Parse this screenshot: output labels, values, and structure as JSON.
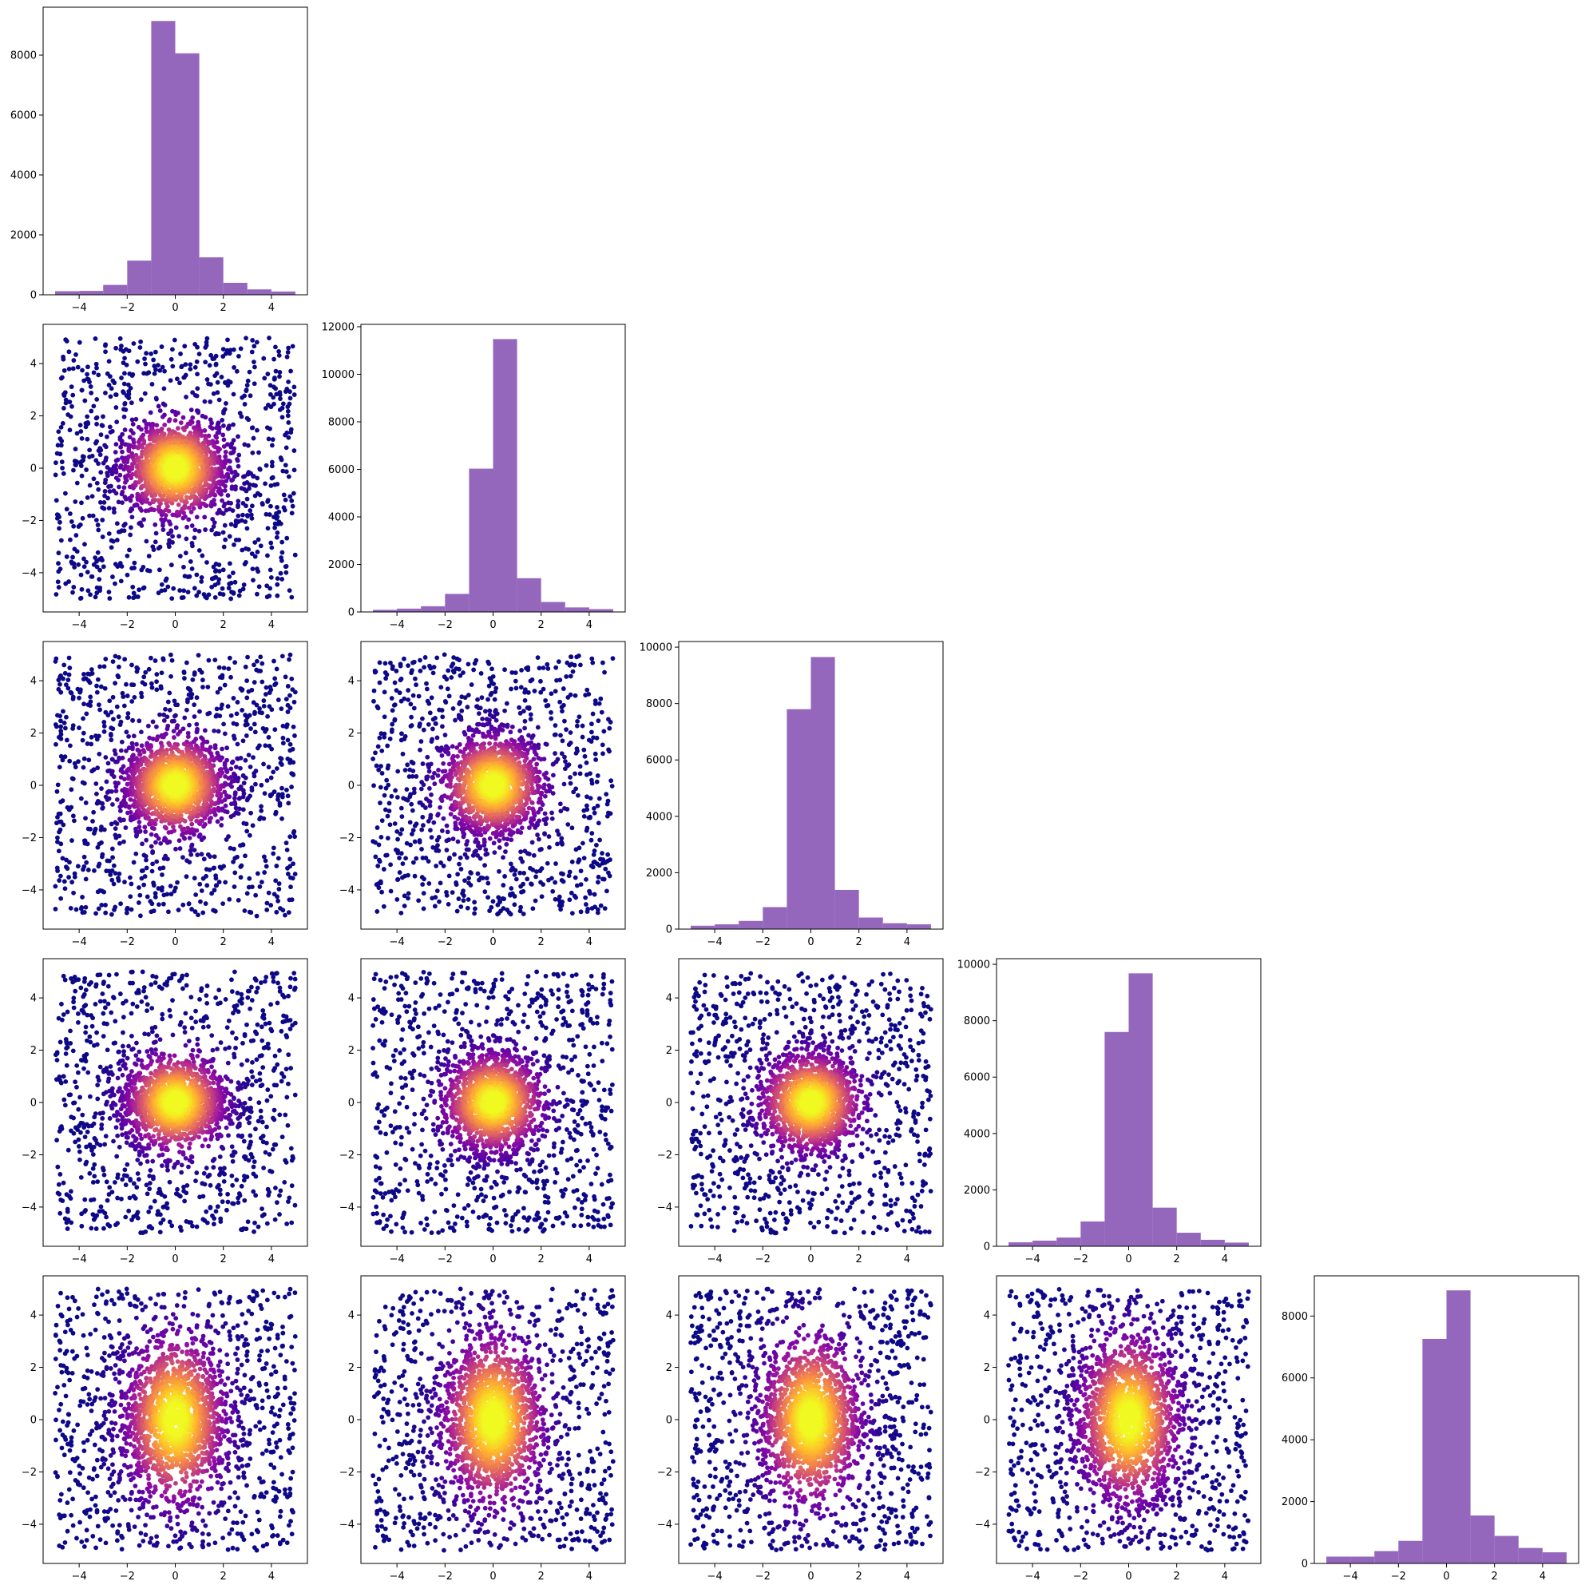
{
  "figure": {
    "type": "corner-plot",
    "variables": 5,
    "colors": {
      "hist_bar": "#9467bd",
      "scatter_colormap": "plasma",
      "axes": "#000000",
      "background": "#ffffff"
    }
  },
  "chart_data": [
    {
      "id": "hist-1",
      "type": "bar",
      "row": 0,
      "col": 0,
      "bin_edges": [
        -5,
        -4,
        -3,
        -2,
        -1,
        0,
        1,
        2,
        3,
        4,
        5
      ],
      "values": [
        120,
        130,
        330,
        1140,
        9140,
        8060,
        1250,
        400,
        180,
        110
      ],
      "xlim": [
        -5.5,
        5.5
      ],
      "ylim": [
        0,
        9600
      ],
      "x_ticks": [
        -4,
        -2,
        0,
        2,
        4
      ],
      "x_tick_labels": [
        "−4",
        "−2",
        "0",
        "2",
        "4"
      ],
      "y_ticks": [
        0,
        2000,
        4000,
        6000,
        8000
      ],
      "y_tick_labels": [
        "0",
        "2000",
        "4000",
        "6000",
        "8000"
      ]
    },
    {
      "id": "hist-2",
      "type": "bar",
      "row": 1,
      "col": 1,
      "bin_edges": [
        -5,
        -4,
        -3,
        -2,
        -1,
        0,
        1,
        2,
        3,
        4,
        5
      ],
      "values": [
        90,
        140,
        240,
        760,
        6030,
        11480,
        1420,
        420,
        190,
        120
      ],
      "xlim": [
        -5.5,
        5.5
      ],
      "ylim": [
        0,
        12100
      ],
      "x_ticks": [
        -4,
        -2,
        0,
        2,
        4
      ],
      "x_tick_labels": [
        "−4",
        "−2",
        "0",
        "2",
        "4"
      ],
      "y_ticks": [
        0,
        2000,
        4000,
        6000,
        8000,
        10000,
        12000
      ],
      "y_tick_labels": [
        "0",
        "2000",
        "4000",
        "6000",
        "8000",
        "10000",
        "12000"
      ]
    },
    {
      "id": "hist-3",
      "type": "bar",
      "row": 2,
      "col": 2,
      "bin_edges": [
        -5,
        -4,
        -3,
        -2,
        -1,
        0,
        1,
        2,
        3,
        4,
        5
      ],
      "values": [
        120,
        170,
        290,
        780,
        7800,
        9650,
        1390,
        410,
        210,
        170
      ],
      "xlim": [
        -5.5,
        5.5
      ],
      "ylim": [
        0,
        10200
      ],
      "x_ticks": [
        -4,
        -2,
        0,
        2,
        4
      ],
      "x_tick_labels": [
        "−4",
        "−2",
        "0",
        "2",
        "4"
      ],
      "y_ticks": [
        0,
        2000,
        4000,
        6000,
        8000,
        10000
      ],
      "y_tick_labels": [
        "0",
        "2000",
        "4000",
        "6000",
        "8000",
        "10000"
      ]
    },
    {
      "id": "hist-4",
      "type": "bar",
      "row": 3,
      "col": 3,
      "bin_edges": [
        -5,
        -4,
        -3,
        -2,
        -1,
        0,
        1,
        2,
        3,
        4,
        5
      ],
      "values": [
        140,
        200,
        310,
        880,
        7600,
        9680,
        1370,
        480,
        230,
        130
      ],
      "xlim": [
        -5.5,
        5.5
      ],
      "ylim": [
        0,
        10200
      ],
      "x_ticks": [
        -4,
        -2,
        0,
        2,
        4
      ],
      "x_tick_labels": [
        "−4",
        "−2",
        "0",
        "2",
        "4"
      ],
      "y_ticks": [
        0,
        2000,
        4000,
        6000,
        8000,
        10000
      ],
      "y_tick_labels": [
        "0",
        "2000",
        "4000",
        "6000",
        "8000",
        "10000"
      ]
    },
    {
      "id": "hist-5",
      "type": "bar",
      "row": 4,
      "col": 4,
      "bin_edges": [
        -5,
        -4,
        -3,
        -2,
        -1,
        0,
        1,
        2,
        3,
        4,
        5
      ],
      "values": [
        220,
        220,
        400,
        730,
        7260,
        8830,
        1550,
        890,
        500,
        360
      ],
      "xlim": [
        -5.5,
        5.5
      ],
      "ylim": [
        0,
        9300
      ],
      "x_ticks": [
        -4,
        -2,
        0,
        2,
        4
      ],
      "x_tick_labels": [
        "−4",
        "−2",
        "0",
        "2",
        "4"
      ],
      "y_ticks": [
        0,
        2000,
        4000,
        6000,
        8000
      ],
      "y_tick_labels": [
        "0",
        "2000",
        "4000",
        "6000",
        "8000"
      ]
    },
    {
      "id": "scatter-2-1",
      "type": "scatter",
      "row": 1,
      "col": 0,
      "shape": "v",
      "x_spread": 1.0,
      "y_spread": 1.0,
      "core_spread": [
        1.1,
        0.75
      ],
      "xlim": [
        -5.5,
        5.5
      ],
      "ylim": [
        -5.5,
        5.5
      ],
      "x_ticks": [
        -4,
        -2,
        0,
        2,
        4
      ],
      "x_tick_labels": [
        "−4",
        "−2",
        "0",
        "2",
        "4"
      ],
      "y_ticks": [
        -4,
        -2,
        0,
        2,
        4
      ],
      "y_tick_labels": [
        "−4",
        "−2",
        "0",
        "2",
        "4"
      ]
    },
    {
      "id": "scatter-3-1",
      "type": "scatter",
      "row": 2,
      "col": 0,
      "shape": "flat",
      "x_spread": 1.0,
      "y_spread": 1.0,
      "core_spread": [
        1.1,
        0.75
      ],
      "xlim": [
        -5.5,
        5.5
      ],
      "ylim": [
        -5.5,
        5.5
      ],
      "x_ticks": [
        -4,
        -2,
        0,
        2,
        4
      ],
      "x_tick_labels": [
        "−4",
        "−2",
        "0",
        "2",
        "4"
      ],
      "y_ticks": [
        -4,
        -2,
        0,
        2,
        4
      ],
      "y_tick_labels": [
        "−4",
        "−2",
        "0",
        "2",
        "4"
      ]
    },
    {
      "id": "scatter-3-2",
      "type": "scatter",
      "row": 2,
      "col": 1,
      "shape": "diag",
      "x_spread": 1.0,
      "y_spread": 1.0,
      "core_spread": [
        0.9,
        0.9
      ],
      "xlim": [
        -5.5,
        5.5
      ],
      "ylim": [
        -5.5,
        5.5
      ],
      "x_ticks": [
        -4,
        -2,
        0,
        2,
        4
      ],
      "x_tick_labels": [
        "−4",
        "−2",
        "0",
        "2",
        "4"
      ],
      "y_ticks": [
        -4,
        -2,
        0,
        2,
        4
      ],
      "y_tick_labels": [
        "−4",
        "−2",
        "0",
        "2",
        "4"
      ]
    },
    {
      "id": "scatter-4-1",
      "type": "scatter",
      "row": 3,
      "col": 0,
      "shape": "flat",
      "x_spread": 1.0,
      "y_spread": 1.0,
      "core_spread": [
        1.1,
        0.75
      ],
      "xlim": [
        -5.5,
        5.5
      ],
      "ylim": [
        -5.5,
        5.5
      ],
      "x_ticks": [
        -4,
        -2,
        0,
        2,
        4
      ],
      "x_tick_labels": [
        "−4",
        "−2",
        "0",
        "2",
        "4"
      ],
      "y_ticks": [
        -4,
        -2,
        0,
        2,
        4
      ],
      "y_tick_labels": [
        "−4",
        "−2",
        "0",
        "2",
        "4"
      ]
    },
    {
      "id": "scatter-4-2",
      "type": "scatter",
      "row": 3,
      "col": 1,
      "shape": "diag",
      "x_spread": 1.0,
      "y_spread": 1.0,
      "core_spread": [
        0.9,
        0.9
      ],
      "xlim": [
        -5.5,
        5.5
      ],
      "ylim": [
        -5.5,
        5.5
      ],
      "x_ticks": [
        -4,
        -2,
        0,
        2,
        4
      ],
      "x_tick_labels": [
        "−4",
        "−2",
        "0",
        "2",
        "4"
      ],
      "y_ticks": [
        -4,
        -2,
        0,
        2,
        4
      ],
      "y_tick_labels": [
        "−4",
        "−2",
        "0",
        "2",
        "4"
      ]
    },
    {
      "id": "scatter-4-3",
      "type": "scatter",
      "row": 3,
      "col": 2,
      "shape": "diag",
      "x_spread": 1.0,
      "y_spread": 1.0,
      "core_spread": [
        0.9,
        0.9
      ],
      "xlim": [
        -5.5,
        5.5
      ],
      "ylim": [
        -5.5,
        5.5
      ],
      "x_ticks": [
        -4,
        -2,
        0,
        2,
        4
      ],
      "x_tick_labels": [
        "−4",
        "−2",
        "0",
        "2",
        "4"
      ],
      "y_ticks": [
        -4,
        -2,
        0,
        2,
        4
      ],
      "y_tick_labels": [
        "−4",
        "−2",
        "0",
        "2",
        "4"
      ]
    },
    {
      "id": "scatter-5-1",
      "type": "scatter",
      "row": 4,
      "col": 0,
      "shape": "flat",
      "x_spread": 1.0,
      "y_spread": 1.7,
      "core_spread": [
        1.1,
        1.3
      ],
      "xlim": [
        -5.5,
        5.5
      ],
      "ylim": [
        -5.5,
        5.5
      ],
      "x_ticks": [
        -4,
        -2,
        0,
        2,
        4
      ],
      "x_tick_labels": [
        "−4",
        "−2",
        "0",
        "2",
        "4"
      ],
      "y_ticks": [
        -4,
        -2,
        0,
        2,
        4
      ],
      "y_tick_labels": [
        "−4",
        "−2",
        "0",
        "2",
        "4"
      ]
    },
    {
      "id": "scatter-5-2",
      "type": "scatter",
      "row": 4,
      "col": 1,
      "shape": "center",
      "x_spread": 1.0,
      "y_spread": 1.7,
      "core_spread": [
        1.0,
        1.3
      ],
      "xlim": [
        -5.5,
        5.5
      ],
      "ylim": [
        -5.5,
        5.5
      ],
      "x_ticks": [
        -4,
        -2,
        0,
        2,
        4
      ],
      "x_tick_labels": [
        "−4",
        "−2",
        "0",
        "2",
        "4"
      ],
      "y_ticks": [
        -4,
        -2,
        0,
        2,
        4
      ],
      "y_tick_labels": [
        "−4",
        "−2",
        "0",
        "2",
        "4"
      ]
    },
    {
      "id": "scatter-5-3",
      "type": "scatter",
      "row": 4,
      "col": 2,
      "shape": "center",
      "x_spread": 1.0,
      "y_spread": 1.7,
      "core_spread": [
        1.0,
        1.3
      ],
      "xlim": [
        -5.5,
        5.5
      ],
      "ylim": [
        -5.5,
        5.5
      ],
      "x_ticks": [
        -4,
        -2,
        0,
        2,
        4
      ],
      "x_tick_labels": [
        "−4",
        "−2",
        "0",
        "2",
        "4"
      ],
      "y_ticks": [
        -4,
        -2,
        0,
        2,
        4
      ],
      "y_tick_labels": [
        "−4",
        "−2",
        "0",
        "2",
        "4"
      ]
    },
    {
      "id": "scatter-5-4",
      "type": "scatter",
      "row": 4,
      "col": 3,
      "shape": "v",
      "x_spread": 1.0,
      "y_spread": 1.7,
      "core_spread": [
        1.1,
        1.4
      ],
      "xlim": [
        -5.5,
        5.5
      ],
      "ylim": [
        -5.5,
        5.5
      ],
      "x_ticks": [
        -4,
        -2,
        0,
        2,
        4
      ],
      "x_tick_labels": [
        "−4",
        "−2",
        "0",
        "2",
        "4"
      ],
      "y_ticks": [
        -4,
        -2,
        0,
        2,
        4
      ],
      "y_tick_labels": [
        "−4",
        "−2",
        "0",
        "2",
        "4"
      ]
    }
  ]
}
